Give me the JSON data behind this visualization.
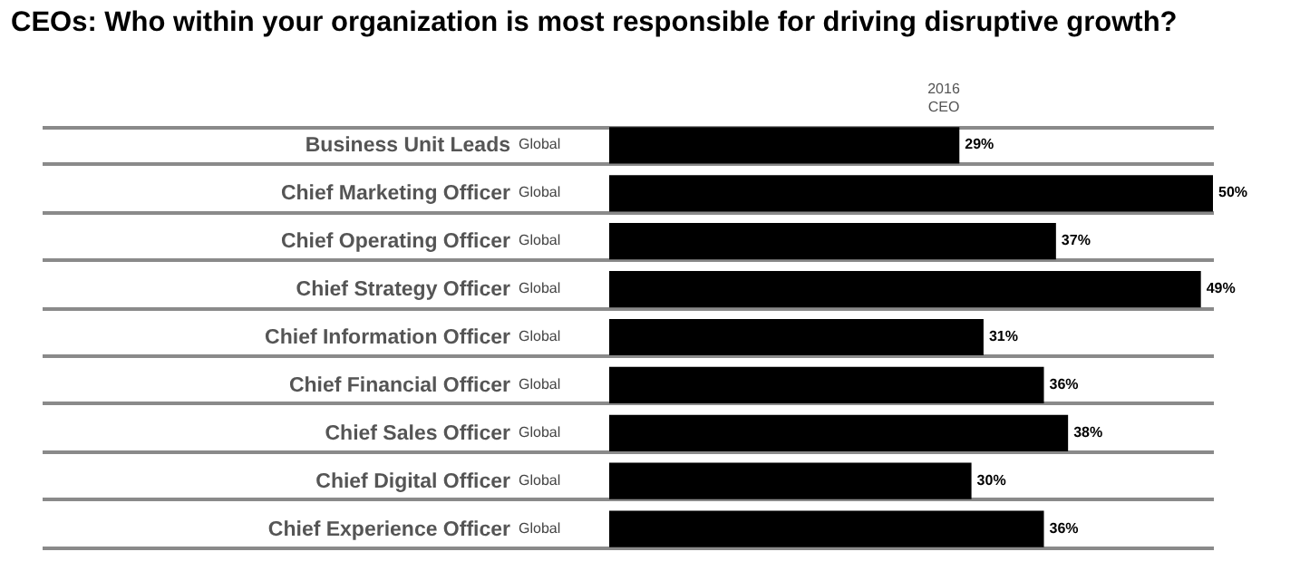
{
  "chart_data": {
    "type": "bar",
    "orientation": "horizontal",
    "title": "CEOs: Who within your organization is most responsible for driving disruptive growth?",
    "annotations": [
      "2016",
      "CEO"
    ],
    "categories": [
      "Business Unit Leads",
      "Chief Marketing Officer",
      "Chief Operating Officer",
      "Chief Strategy Officer",
      "Chief Information Officer",
      "Chief Financial Officer",
      "Chief Sales Officer",
      "Chief Digital Officer",
      "Chief Experience Officer"
    ],
    "y2_categories": [
      "Global",
      "Global",
      "Global",
      "Global",
      "Global",
      "Global",
      "Global",
      "Global",
      "Global"
    ],
    "values": [
      29,
      50,
      37,
      49,
      31,
      36,
      38,
      30,
      36
    ],
    "value_labels": [
      "29%",
      "50%",
      "37%",
      "49%",
      "31%",
      "36%",
      "38%",
      "30%",
      "36%"
    ],
    "color": "#000000",
    "grid": "y"
  }
}
